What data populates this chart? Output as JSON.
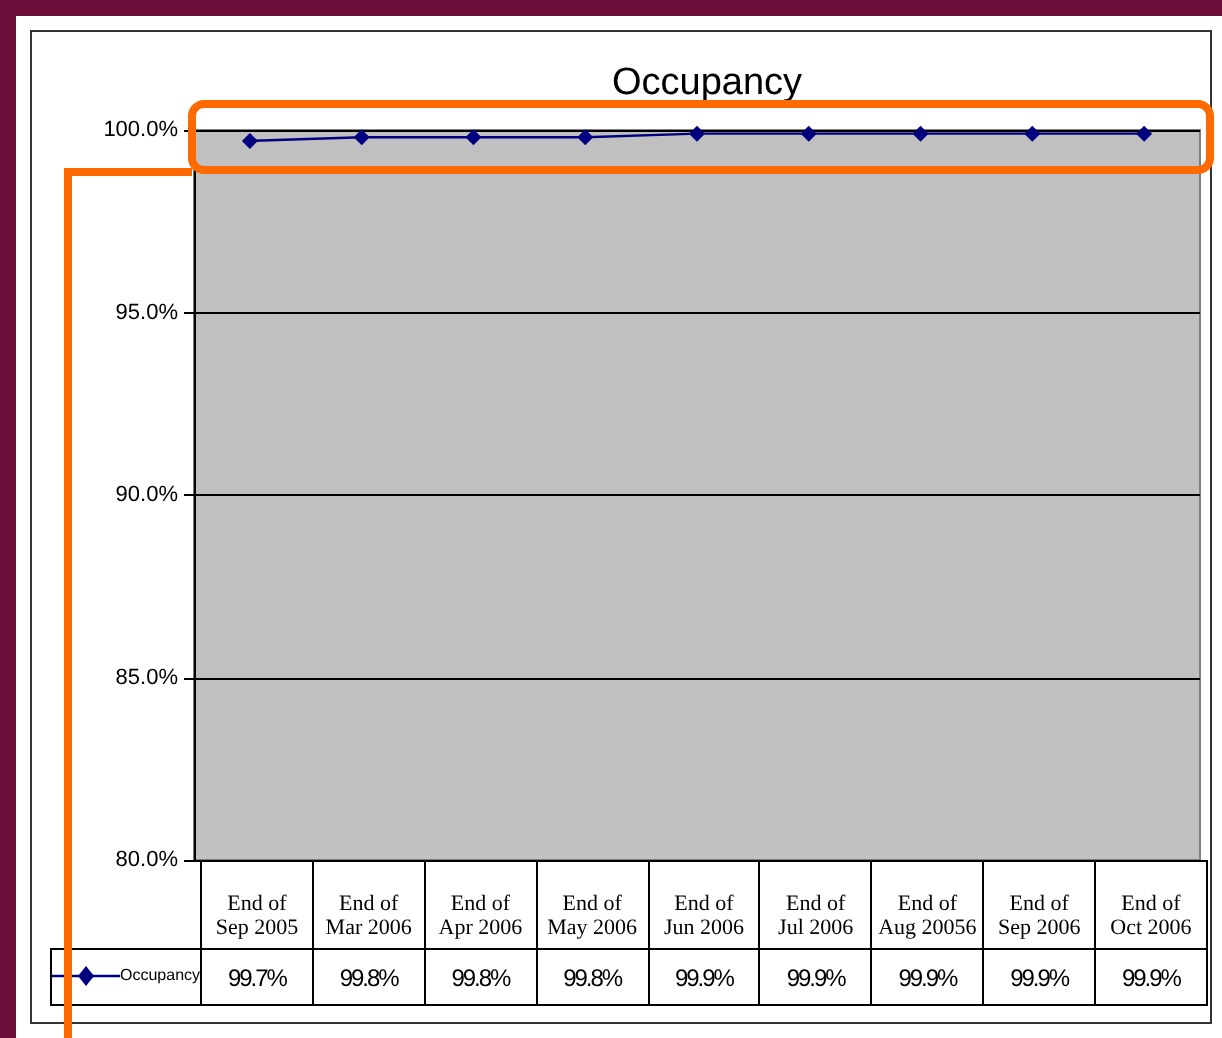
{
  "chart_data": {
    "type": "line",
    "title": "Occupancy",
    "categories": [
      "End of Sep 2005",
      "End of Mar 2006",
      "End of Apr 2006",
      "End of May 2006",
      "End of Jun 2006",
      "End of Jul 2006",
      "End of Aug 20056",
      "End of Sep 2006",
      "End of Oct 2006"
    ],
    "series": [
      {
        "name": "Occupancy",
        "color": "#000080",
        "values": [
          99.7,
          99.8,
          99.8,
          99.8,
          99.9,
          99.9,
          99.9,
          99.9,
          99.9
        ],
        "value_labels": [
          "99.7%",
          "99.8%",
          "99.8%",
          "99.8%",
          "99.9%",
          "99.9%",
          "99.9%",
          "99.9%",
          "99.9%"
        ]
      }
    ],
    "ylim": [
      80,
      100
    ],
    "yticks": [
      {
        "value": 80,
        "label": "80.0%"
      },
      {
        "value": 85,
        "label": "85.0%"
      },
      {
        "value": 90,
        "label": "90.0%"
      },
      {
        "value": 95,
        "label": "95.0%"
      },
      {
        "value": 100,
        "label": "100.0%"
      }
    ],
    "grid": "y",
    "legend": "bottom left",
    "marker": "diamond",
    "line_style": "solid"
  }
}
